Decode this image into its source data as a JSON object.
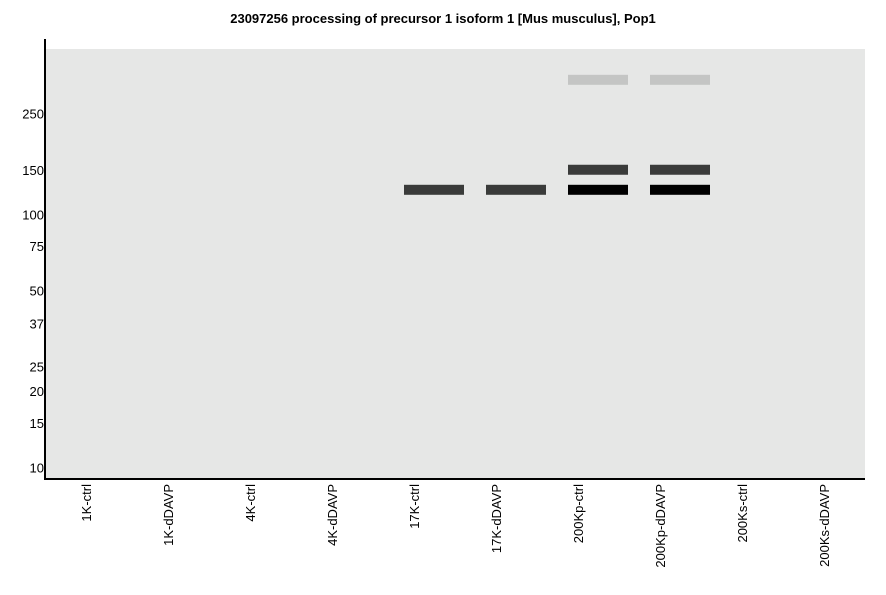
{
  "title": "23097256 processing of precursor 1 isoform 1 [Mus musculus], Pop1",
  "colors": {
    "background": "#e6e7e6",
    "axis": "#000000",
    "band_light": "#c4c5c4",
    "band_dark": "#3a3b3a",
    "band_black": "#000000"
  },
  "chart_data": {
    "type": "western-blot",
    "title": "23097256 processing of precursor 1 isoform 1 [Mus musculus], Pop1",
    "y_scale": "log",
    "ylim": [
      9,
      450
    ],
    "y_ticks": [
      {
        "label": "250",
        "value": 250
      },
      {
        "label": "150",
        "value": 150
      },
      {
        "label": "100",
        "value": 100
      },
      {
        "label": "75",
        "value": 75
      },
      {
        "label": "50",
        "value": 50
      },
      {
        "label": "37",
        "value": 37
      },
      {
        "label": "25",
        "value": 25
      },
      {
        "label": "20",
        "value": 20
      },
      {
        "label": "15",
        "value": 15
      },
      {
        "label": "10",
        "value": 10
      }
    ],
    "lanes": [
      "1K-ctrl",
      "1K-dDAVP",
      "4K-ctrl",
      "4K-dDAVP",
      "17K-ctrl",
      "17K-dDAVP",
      "200Kp-ctrl",
      "200Kp-dDAVP",
      "200Ks-ctrl",
      "200Ks-dDAVP"
    ],
    "bands": [
      {
        "lane": "17K-ctrl",
        "mw": 125,
        "intensity": "dark"
      },
      {
        "lane": "17K-dDAVP",
        "mw": 125,
        "intensity": "dark"
      },
      {
        "lane": "200Kp-ctrl",
        "mw": 340,
        "intensity": "light"
      },
      {
        "lane": "200Kp-ctrl",
        "mw": 150,
        "intensity": "dark"
      },
      {
        "lane": "200Kp-ctrl",
        "mw": 125,
        "intensity": "black"
      },
      {
        "lane": "200Kp-dDAVP",
        "mw": 340,
        "intensity": "light"
      },
      {
        "lane": "200Kp-dDAVP",
        "mw": 150,
        "intensity": "dark"
      },
      {
        "lane": "200Kp-dDAVP",
        "mw": 125,
        "intensity": "black"
      }
    ]
  }
}
